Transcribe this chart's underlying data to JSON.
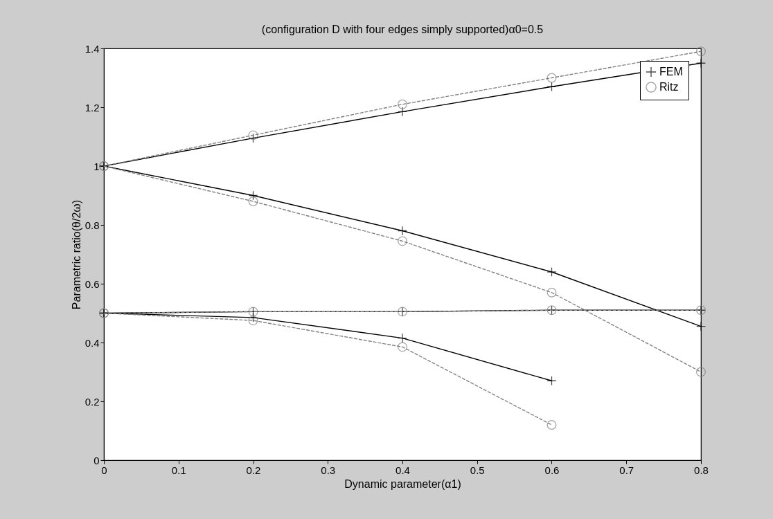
{
  "chart_data": {
    "type": "line",
    "title": "(configuration D with four edges simply supported)α0=0.5",
    "xlabel": "Dynamic parameter(α1)",
    "ylabel": "Parametric ratio(θ/2ω)",
    "xlim": [
      0,
      0.8
    ],
    "xticks": [
      0,
      0.1,
      0.2,
      0.3,
      0.4,
      0.5,
      0.6,
      0.7,
      0.8
    ],
    "ylim": [
      0,
      1.4
    ],
    "yticks": [
      0,
      0.2,
      0.4,
      0.6,
      0.8,
      1,
      1.2,
      1.4
    ],
    "grid": false,
    "legend": "top right",
    "series": [
      {
        "name": "FEM",
        "color": "#000000",
        "marker": "cross",
        "line_style": "solid",
        "x": [
          0,
          0.2,
          0.4,
          0.6,
          0.8
        ],
        "values": [
          1.0,
          1.095,
          1.185,
          1.27,
          1.35
        ]
      },
      {
        "name": "Ritz",
        "color": "#808080",
        "marker": "circle",
        "line_style": "dashed",
        "x": [
          0,
          0.2,
          0.4,
          0.6,
          0.8
        ],
        "values": [
          1.0,
          1.105,
          1.21,
          1.3,
          1.39
        ]
      },
      {
        "color": "#000000",
        "marker": "cross",
        "line_style": "solid",
        "x": [
          0,
          0.2,
          0.4,
          0.6,
          0.8
        ],
        "values": [
          1.0,
          0.9,
          0.78,
          0.64,
          0.455
        ]
      },
      {
        "color": "#808080",
        "marker": "circle",
        "line_style": "dashed",
        "x": [
          0,
          0.2,
          0.4,
          0.6,
          0.8
        ],
        "values": [
          1.0,
          0.88,
          0.745,
          0.57,
          0.3
        ]
      },
      {
        "color": "#000000",
        "marker": "cross",
        "line_style": "solid",
        "x": [
          0,
          0.2,
          0.4,
          0.6,
          0.8
        ],
        "values": [
          0.5,
          0.505,
          0.505,
          0.51,
          0.51
        ]
      },
      {
        "color": "#808080",
        "marker": "circle",
        "line_style": "dashed",
        "x": [
          0,
          0.2,
          0.4,
          0.6,
          0.8
        ],
        "values": [
          0.5,
          0.505,
          0.505,
          0.51,
          0.51
        ]
      },
      {
        "color": "#000000",
        "marker": "cross",
        "line_style": "solid",
        "x": [
          0,
          0.2,
          0.4,
          0.6
        ],
        "values": [
          0.5,
          0.485,
          0.415,
          0.27
        ]
      },
      {
        "color": "#808080",
        "marker": "circle",
        "line_style": "dashed",
        "x": [
          0,
          0.2,
          0.4,
          0.6
        ],
        "values": [
          0.5,
          0.475,
          0.385,
          0.12
        ]
      }
    ]
  }
}
